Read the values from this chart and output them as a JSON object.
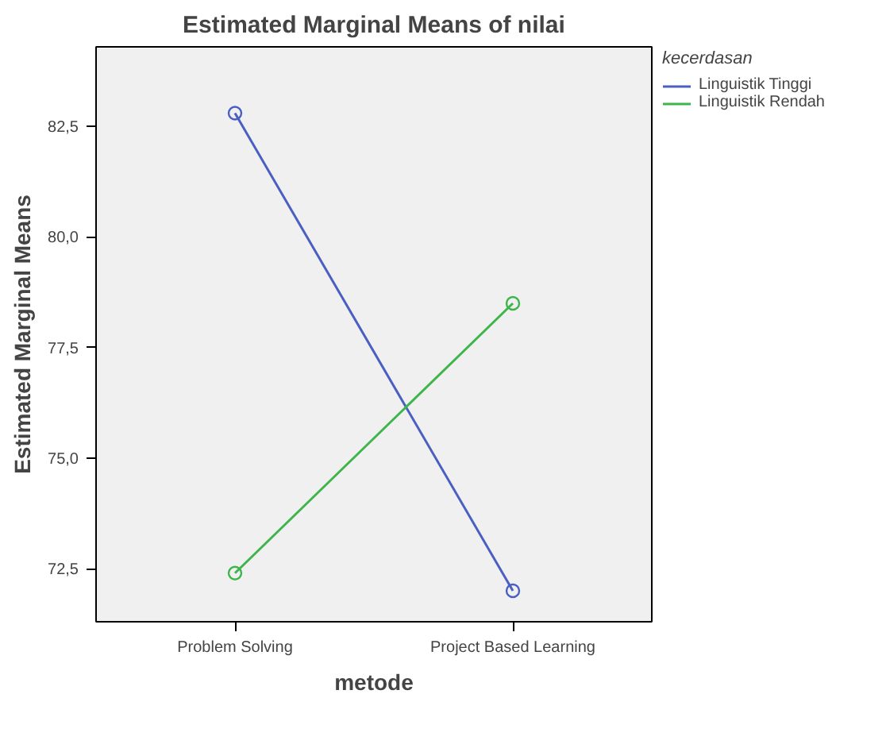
{
  "chart_data": {
    "type": "line",
    "title": "Estimated Marginal Means of nilai",
    "xlabel": "metode",
    "ylabel": "Estimated Marginal Means",
    "legend_title": "kecerdasan",
    "categories": [
      "Problem Solving",
      "Project Based Learning"
    ],
    "series": [
      {
        "name": "Linguistik Tinggi",
        "color": "#4a5fc1",
        "values": [
          82.8,
          72.0
        ]
      },
      {
        "name": "Linguistik Rendah",
        "color": "#3db54a",
        "values": [
          72.4,
          78.5
        ]
      }
    ],
    "ylim": [
      71.3,
      84.3
    ],
    "yticks": [
      {
        "value": 72.5,
        "label": "72,5"
      },
      {
        "value": 75.0,
        "label": "75,0"
      },
      {
        "value": 77.5,
        "label": "77,5"
      },
      {
        "value": 80.0,
        "label": "80,0"
      },
      {
        "value": 82.5,
        "label": "82,5"
      }
    ],
    "marker": "circle",
    "line_style": "solid",
    "grid": false,
    "legend": "top right"
  }
}
